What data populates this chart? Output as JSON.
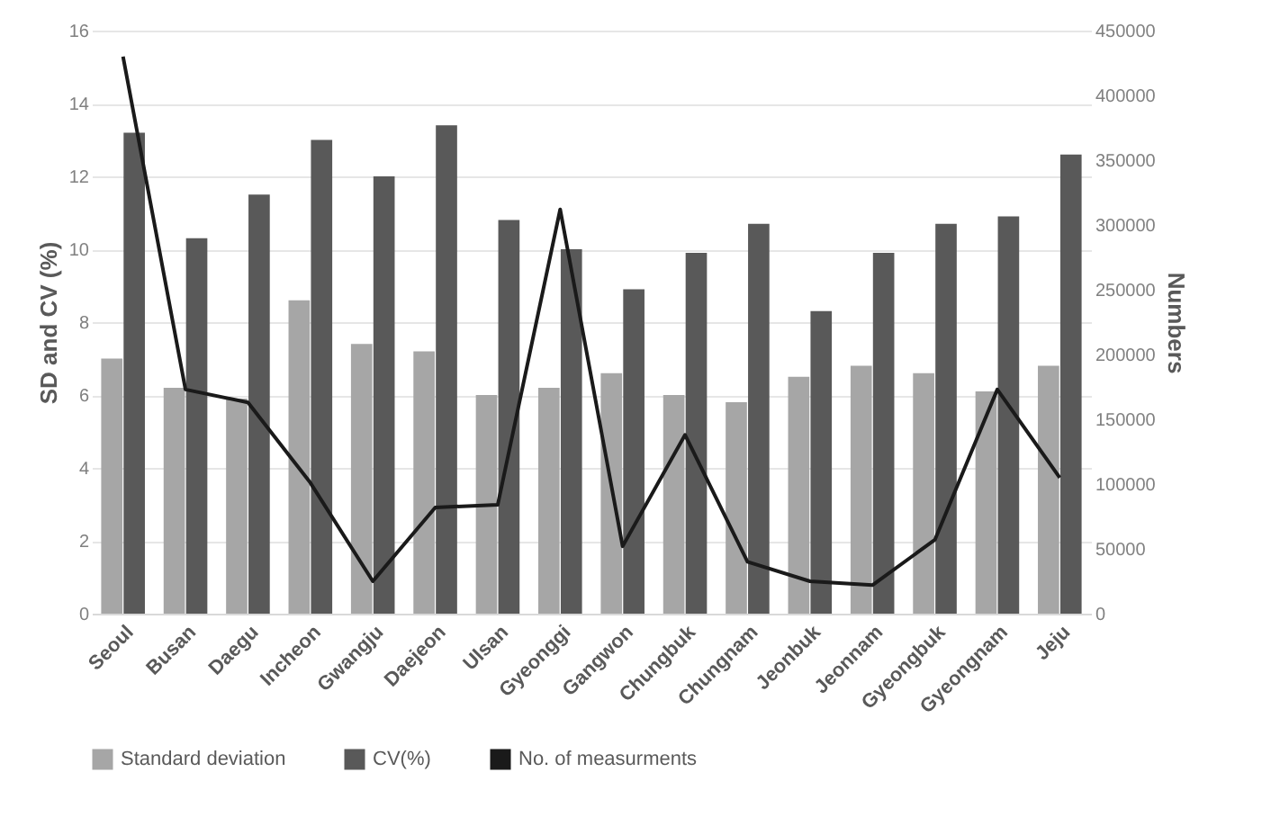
{
  "chart_data": {
    "type": "bar",
    "ylabel": "SD and CV (%)",
    "y2label": "Numbers",
    "categories": [
      "Seoul",
      "Busan",
      "Daegu",
      "Incheon",
      "Gwangju",
      "Daejeon",
      "Ulsan",
      "Gyeonggi",
      "Gangwon",
      "Chungbuk",
      "Chungnam",
      "Jeonbuk",
      "Jeonnam",
      "Gyeongbuk",
      "Gyeongnam",
      "Jeju"
    ],
    "series": [
      {
        "name": "Standard deviation",
        "color": "#a6a6a6",
        "values": [
          7.0,
          6.2,
          5.9,
          8.6,
          7.4,
          7.2,
          6.0,
          6.2,
          6.6,
          6.0,
          5.8,
          6.5,
          6.8,
          6.6,
          6.1,
          6.8
        ]
      },
      {
        "name": "CV(%)",
        "color": "#595959",
        "values": [
          13.2,
          10.3,
          11.5,
          13.0,
          12.0,
          13.4,
          10.8,
          10.0,
          8.9,
          9.9,
          10.7,
          8.3,
          9.9,
          10.7,
          10.9,
          12.6
        ]
      },
      {
        "name": "No. of measurments",
        "type": "line",
        "axis": "y2",
        "color": "#1a1a1a",
        "values": [
          430000,
          173000,
          163000,
          101000,
          25000,
          82000,
          84000,
          312000,
          52000,
          138000,
          40000,
          25000,
          22000,
          57000,
          173000,
          105000
        ]
      }
    ],
    "ylim": [
      0,
      16
    ],
    "yticks": [
      0,
      2,
      4,
      6,
      8,
      10,
      12,
      14,
      16
    ],
    "y2lim": [
      0,
      450000
    ],
    "y2ticks": [
      0,
      50000,
      100000,
      150000,
      200000,
      250000,
      300000,
      350000,
      400000,
      450000
    ],
    "grid": "y",
    "legend": "bottom"
  }
}
